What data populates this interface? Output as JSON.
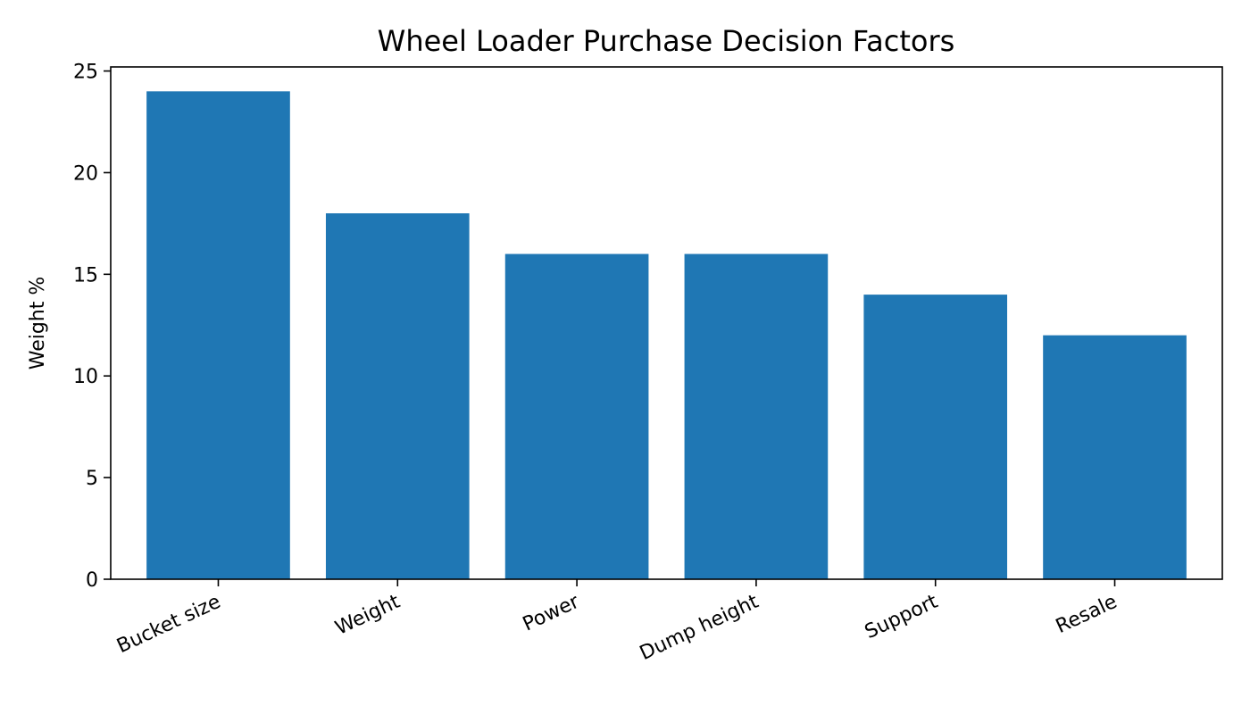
{
  "chart_data": {
    "type": "bar",
    "title": "Wheel Loader Purchase Decision Factors",
    "xlabel": "",
    "ylabel": "Weight %",
    "categories": [
      "Bucket size",
      "Weight",
      "Power",
      "Dump height",
      "Support",
      "Resale"
    ],
    "values": [
      24,
      18,
      16,
      16,
      14,
      12
    ],
    "ylim": [
      0,
      25.2
    ],
    "yticks": [
      0,
      5,
      10,
      15,
      20,
      25
    ],
    "grid": false,
    "legend": "none",
    "bar_color": "#1f77b4",
    "axis_color": "#000000",
    "background": "#ffffff"
  }
}
